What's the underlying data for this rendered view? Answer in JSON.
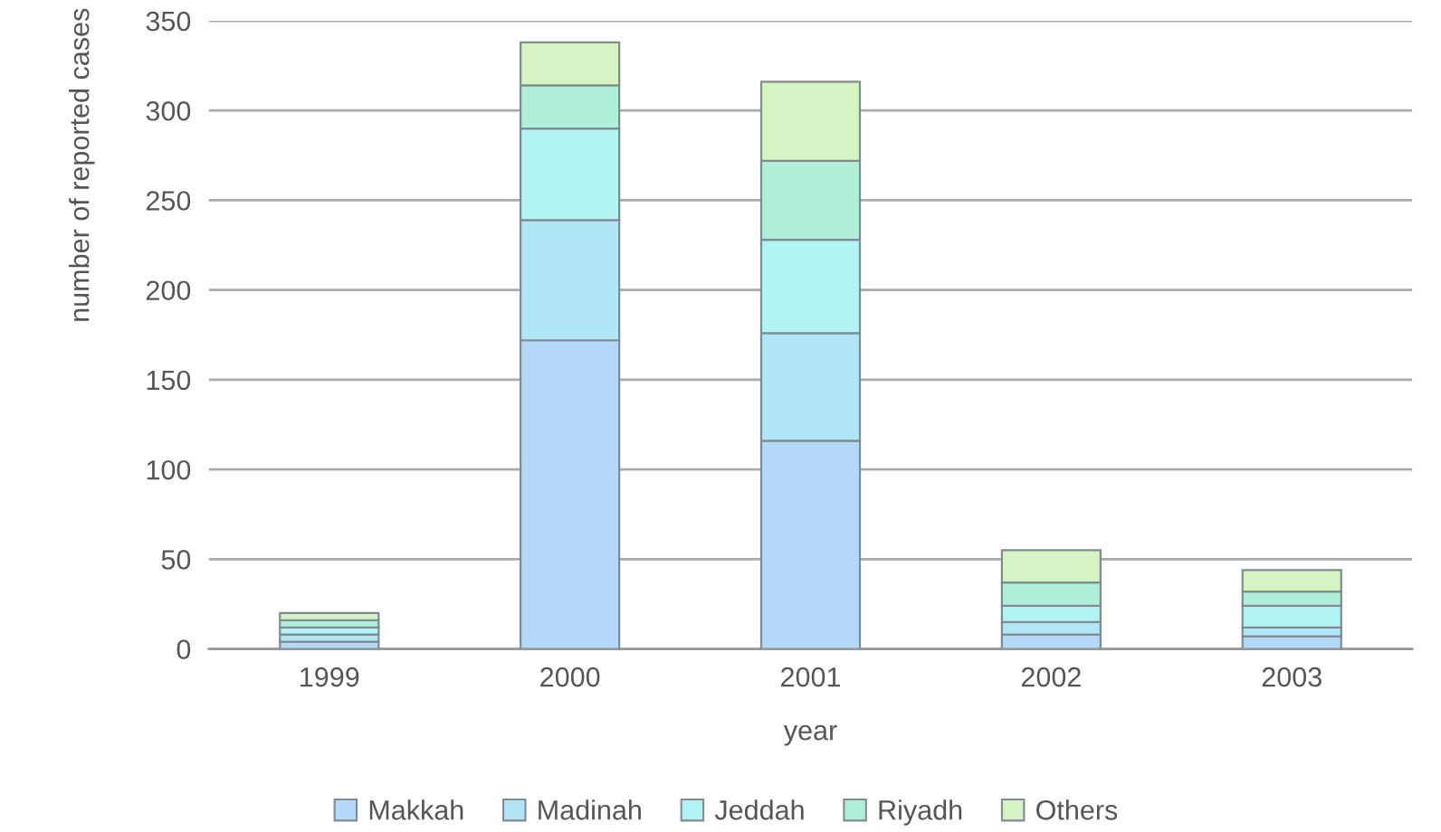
{
  "chart_data": {
    "type": "bar",
    "stacked": true,
    "xlabel": "year",
    "ylabel": "number of reported cases",
    "categories": [
      "1999",
      "2000",
      "2001",
      "2002",
      "2003"
    ],
    "series": [
      {
        "name": "Makkah",
        "color": "#b4d8f8",
        "values": [
          4,
          172,
          116,
          8,
          7
        ]
      },
      {
        "name": "Madinah",
        "color": "#b0e6f6",
        "values": [
          4,
          67,
          60,
          7,
          5
        ]
      },
      {
        "name": "Jeddah",
        "color": "#b2f4f6",
        "values": [
          4,
          51,
          52,
          9,
          12
        ]
      },
      {
        "name": "Riyadh",
        "color": "#b0f0d8",
        "values": [
          4,
          24,
          44,
          13,
          8
        ]
      },
      {
        "name": "Others",
        "color": "#d6f3c4",
        "values": [
          4,
          24,
          44,
          18,
          12
        ]
      }
    ],
    "ylim": [
      0,
      350
    ],
    "yticks": [
      0,
      50,
      100,
      150,
      200,
      250,
      300,
      350
    ],
    "grid": "y",
    "legend": "bottom"
  }
}
